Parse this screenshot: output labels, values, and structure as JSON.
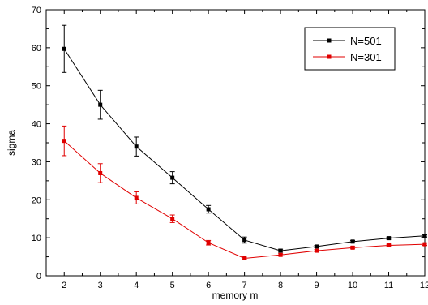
{
  "chart_data": {
    "type": "line",
    "title": "",
    "xlabel": "memory m",
    "ylabel": "sigma",
    "xlim": [
      1.5,
      12
    ],
    "ylim": [
      0,
      70
    ],
    "xticks": [
      2,
      3,
      4,
      5,
      6,
      7,
      8,
      9,
      10,
      11,
      12
    ],
    "yticks": [
      0,
      10,
      20,
      30,
      40,
      50,
      60,
      70
    ],
    "grid": false,
    "legend": "top-right",
    "x": [
      2,
      3,
      4,
      5,
      6,
      7,
      8,
      9,
      10,
      11,
      12
    ],
    "series": [
      {
        "name": "N=501",
        "color": "#000000",
        "marker": "square",
        "values": [
          59.7,
          45.0,
          34.0,
          25.8,
          17.5,
          9.4,
          6.6,
          7.7,
          9.0,
          9.9,
          10.5
        ],
        "errors": [
          6.2,
          3.8,
          2.5,
          1.6,
          1.0,
          0.8,
          0.4,
          0.3,
          0.3,
          0.3,
          0.3
        ]
      },
      {
        "name": "N=301",
        "color": "#e00000",
        "marker": "square",
        "values": [
          35.5,
          27.0,
          20.5,
          15.0,
          8.7,
          4.6,
          5.5,
          6.6,
          7.4,
          8.0,
          8.3
        ],
        "errors": [
          3.9,
          2.5,
          1.6,
          1.0,
          0.6,
          0.3,
          0.3,
          0.3,
          0.3,
          0.3,
          0.3
        ]
      }
    ]
  }
}
